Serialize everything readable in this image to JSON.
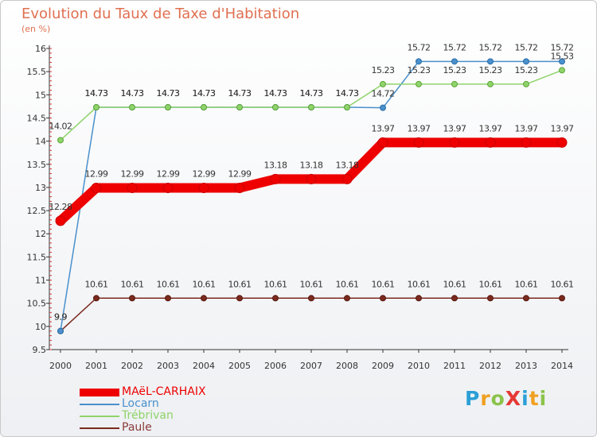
{
  "chart_data": {
    "type": "line",
    "title": "Evolution du Taux de Taxe d'Habitation",
    "unit_label": "(en %)",
    "categories": [
      "2000",
      "2001",
      "2002",
      "2003",
      "2004",
      "2005",
      "2006",
      "2007",
      "2008",
      "2009",
      "2010",
      "2011",
      "2012",
      "2013",
      "2014"
    ],
    "ylim": [
      9.5,
      16
    ],
    "y_ticks": [
      "9.5",
      "10",
      "10.5",
      "11",
      "11.5",
      "12",
      "12.5",
      "13",
      "13.5",
      "14",
      "14.5",
      "15",
      "15.5",
      "16"
    ],
    "grid": false,
    "legend_position": "bottom-left",
    "series": [
      {
        "name": "MAëL-CARHAIX",
        "color": "#ee0000",
        "values": [
          12.28,
          12.99,
          12.99,
          12.99,
          12.99,
          12.99,
          13.18,
          13.18,
          13.18,
          13.97,
          13.97,
          13.97,
          13.97,
          13.97,
          13.97
        ],
        "labels": [
          "12.28",
          "12.99",
          "12.99",
          "12.99",
          "12.99",
          "12.99",
          "13.18",
          "13.18",
          "13.18",
          "13.97",
          "13.97",
          "13.97",
          "13.97",
          "13.97",
          "13.97"
        ]
      },
      {
        "name": "Locarn",
        "color": "#4a90cc",
        "values": [
          9.9,
          14.73,
          14.73,
          14.73,
          14.73,
          14.73,
          14.73,
          14.73,
          14.73,
          14.72,
          15.72,
          15.72,
          15.72,
          15.72,
          15.72
        ],
        "labels": [
          "9.9",
          "14.73",
          "14.73",
          "14.73",
          "14.73",
          "14.73",
          "14.73",
          "14.73",
          "14.73",
          "14.72",
          "15.72",
          "15.72",
          "15.72",
          "15.72",
          "15.72"
        ]
      },
      {
        "name": "Trébrivan",
        "color": "#8fd36a",
        "values": [
          14.02,
          14.73,
          14.73,
          14.73,
          14.73,
          14.73,
          14.73,
          14.73,
          14.73,
          15.23,
          15.23,
          15.23,
          15.23,
          15.23,
          15.53
        ],
        "labels": [
          "14.02",
          "14.73",
          "14.73",
          "14.73",
          "14.73",
          "14.73",
          "14.73",
          "14.73",
          "14.73",
          "15.23",
          "15.23",
          "15.23",
          "15.23",
          "15.23",
          "15.53"
        ]
      },
      {
        "name": "Paule",
        "color": "#7a2a1e",
        "values": [
          9.9,
          10.61,
          10.61,
          10.61,
          10.61,
          10.61,
          10.61,
          10.61,
          10.61,
          10.61,
          10.61,
          10.61,
          10.61,
          10.61,
          10.61
        ],
        "labels": [
          "9.9",
          "10.61",
          "10.61",
          "10.61",
          "10.61",
          "10.61",
          "10.61",
          "10.61",
          "10.61",
          "10.61",
          "10.61",
          "10.61",
          "10.61",
          "10.61",
          "10.61"
        ]
      }
    ]
  },
  "logo": {
    "text": "ProXiti",
    "letters": [
      "P",
      "r",
      "o",
      "X",
      "i",
      "t",
      "i"
    ],
    "colors": [
      "#2a9fd6",
      "#f0a020",
      "#8bc34a",
      "#e53935",
      "#2a9fd6",
      "#f0a020",
      "#8bc34a"
    ]
  }
}
